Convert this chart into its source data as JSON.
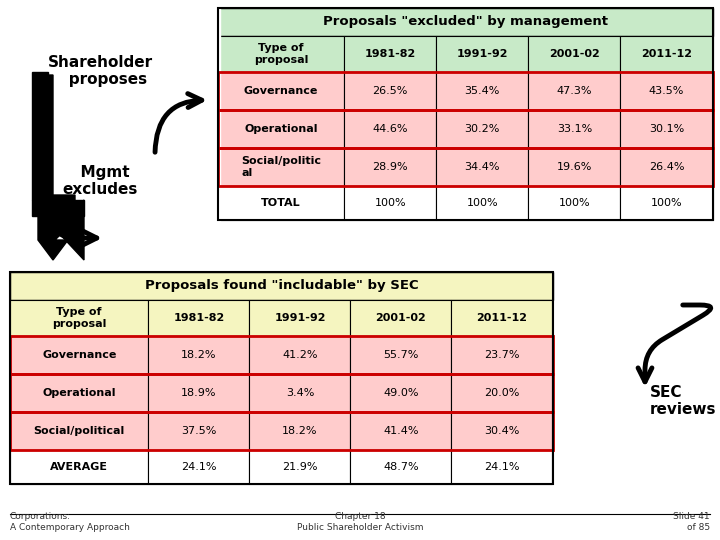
{
  "table1_title": "Proposals \"excluded\" by management",
  "table1_header": [
    "Type of\nproposal",
    "1981-82",
    "1991-92",
    "2001-02",
    "2011-12"
  ],
  "table1_rows": [
    [
      "Governance",
      "26.5%",
      "35.4%",
      "47.3%",
      "43.5%"
    ],
    [
      "Operational",
      "44.6%",
      "30.2%",
      "33.1%",
      "30.1%"
    ],
    [
      "Social/politic\nal",
      "28.9%",
      "34.4%",
      "19.6%",
      "26.4%"
    ],
    [
      "TOTAL",
      "100%",
      "100%",
      "100%",
      "100%"
    ]
  ],
  "table1_header_bg": "#c8eac8",
  "table1_row_highlighted": [
    0,
    1,
    2
  ],
  "table1_highlight_color": "#ffcccc",
  "table1_border_color": "#cc0000",
  "table2_title": "Proposals found \"includable\" by SEC",
  "table2_header": [
    "Type of\nproposal",
    "1981-82",
    "1991-92",
    "2001-02",
    "2011-12"
  ],
  "table2_rows": [
    [
      "Governance",
      "18.2%",
      "41.2%",
      "55.7%",
      "23.7%"
    ],
    [
      "Operational",
      "18.9%",
      "3.4%",
      "49.0%",
      "20.0%"
    ],
    [
      "Social/political",
      "37.5%",
      "18.2%",
      "41.4%",
      "30.4%"
    ],
    [
      "AVERAGE",
      "24.1%",
      "21.9%",
      "48.7%",
      "24.1%"
    ]
  ],
  "table2_header_bg": "#f5f5c0",
  "table2_row_highlighted": [
    0,
    1,
    2
  ],
  "table2_highlight_color": "#ffcccc",
  "table2_border_color": "#cc0000",
  "bg_color": "#ffffff",
  "footer_left": "Corporations:\nA Contemporary Approach",
  "footer_center": "Chapter 18\nPublic Shareholder Activism",
  "footer_right": "Slide 41\nof 85",
  "text_shareholder": "Shareholder\n   proposes",
  "text_mgmt": "  Mgmt\nexcludes",
  "text_sec": "SEC\nreviews"
}
